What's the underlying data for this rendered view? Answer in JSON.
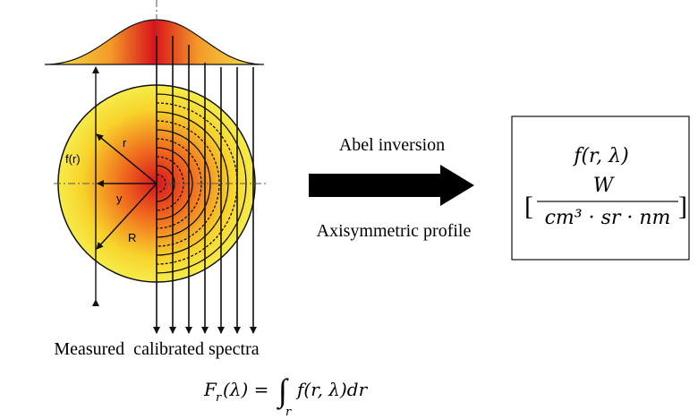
{
  "diagram": {
    "labels": {
      "f_r": "f(r)",
      "r": "r",
      "y": "y",
      "R": "R"
    },
    "caption": "Measured  calibrated spectra",
    "formula": {
      "F": "F",
      "F_sub": "r",
      "F_arg": "(λ) =",
      "integral": "∫",
      "integral_sub": "r",
      "integrand": "f(r, λ)dr"
    },
    "arrow": {
      "above": "Abel inversion",
      "below": "Axisymmetric profile"
    },
    "result": {
      "top": "f(r, λ)",
      "numerator": "W",
      "left_bracket": "[",
      "denominator": "cm³ · sr · nm",
      "right_bracket": "]"
    }
  }
}
